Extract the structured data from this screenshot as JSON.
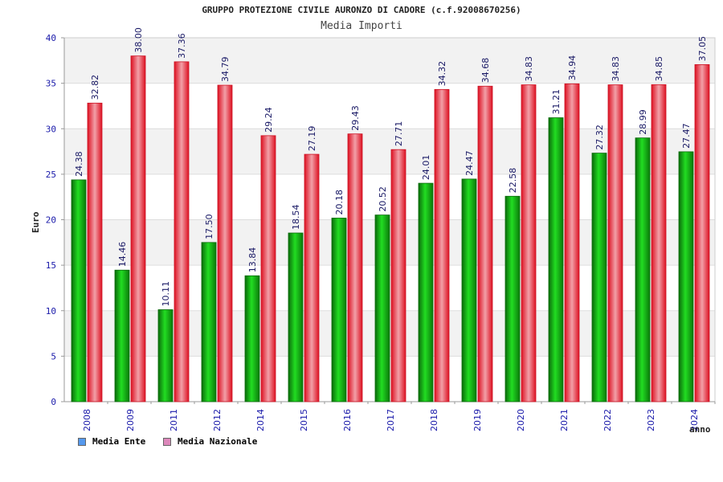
{
  "chart_data": {
    "type": "bar",
    "title": "GRUPPO PROTEZIONE CIVILE AURONZO DI CADORE (c.f.92008670256)",
    "subtitle": "Media Importi",
    "xlabel": "anno",
    "ylabel": "Euro",
    "ylim": [
      0,
      40
    ],
    "yticks": [
      0,
      5,
      10,
      15,
      20,
      25,
      30,
      35,
      40
    ],
    "grid": true,
    "legend_position": "bottom-left",
    "categories": [
      "2008",
      "2009",
      "2011",
      "2012",
      "2014",
      "2015",
      "2016",
      "2017",
      "2018",
      "2019",
      "2020",
      "2021",
      "2022",
      "2023",
      "2024"
    ],
    "series": [
      {
        "name": "Media Ente",
        "color": "#11aa11",
        "legend_color": "#5599ee",
        "values": [
          24.38,
          14.46,
          10.11,
          17.5,
          13.84,
          18.54,
          20.18,
          20.52,
          24.01,
          24.47,
          22.58,
          31.21,
          27.32,
          28.99,
          27.47
        ],
        "labels": [
          "24.38",
          "14.46",
          "10.11",
          "17.50",
          "13.84",
          "18.54",
          "20.18",
          "20.52",
          "24.01",
          "24.47",
          "22.58",
          "31.21",
          "27.32",
          "28.99",
          "27.47"
        ]
      },
      {
        "name": "Media Nazionale",
        "color": "#ee2233",
        "legend_color": "#dd88bb",
        "values": [
          32.82,
          38.0,
          37.36,
          34.79,
          29.24,
          27.19,
          29.43,
          27.71,
          34.32,
          34.68,
          34.83,
          34.94,
          34.83,
          34.85,
          37.05
        ],
        "labels": [
          "32.82",
          "38.00",
          "37.36",
          "34.79",
          "29.24",
          "27.19",
          "29.43",
          "27.71",
          "34.32",
          "34.68",
          "34.83",
          "34.94",
          "34.83",
          "34.85",
          "37.05"
        ]
      }
    ]
  }
}
